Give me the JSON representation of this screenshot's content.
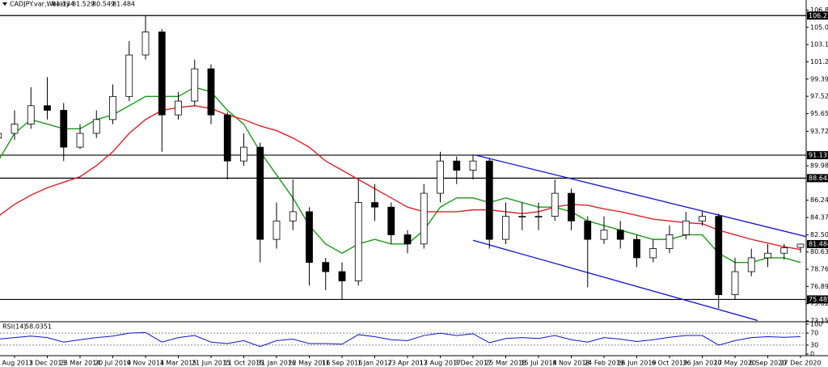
{
  "chart_data": {
    "type": "candlestick",
    "title": "CADJPY.var,Weekly",
    "categories": [
      null,
      "1 Aug 2013",
      null,
      "1 Dec 2013",
      null,
      "23 Mar 2014",
      null,
      "20 Jul 2014",
      null,
      "9 Nov 2014",
      null,
      "1 Mar 2015",
      null,
      "21 Jun 2015",
      null,
      "11 Oct 2015",
      null,
      "31 Jan 2016",
      null,
      "22 May 2016",
      null,
      "11 Sep 2016",
      null,
      "1 Jan 2017",
      null,
      "23 Apr 2017",
      null,
      "13 Aug 2017",
      null,
      "3 Dec 2017",
      null,
      "25 Mar 2018",
      null,
      "15 Jul 2018",
      null,
      "4 Nov 2018",
      null,
      "24 Feb 2019",
      null,
      "16 Jun 2019",
      null,
      "6 Oct 2019",
      null,
      "26 Jan 2020",
      null,
      "17 May 2020",
      null,
      "6 Sep 2020",
      null,
      "27 Dec 2020"
    ],
    "open": [
      93,
      93.5,
      94.5,
      96.5,
      96,
      92,
      93.5,
      95,
      97.5,
      102,
      104.5,
      95.5,
      97,
      100.5,
      95.5,
      90.5,
      92,
      82,
      84,
      85,
      79.5,
      78.5,
      77.5,
      86,
      85.5,
      82.5,
      81.5,
      87,
      90.5,
      89.5,
      90.5,
      82,
      84.5,
      84.5,
      84.5,
      87,
      84,
      82,
      83,
      82,
      80,
      81,
      82.5,
      84,
      84.5,
      76,
      78.5,
      80,
      80.5,
      81.134
    ],
    "high": [
      95,
      96,
      98.5,
      99.6,
      96.8,
      94.5,
      96,
      98.8,
      103.5,
      106.3,
      104.8,
      98,
      101.5,
      101,
      95.8,
      93.5,
      92.5,
      86,
      88.5,
      85.5,
      80,
      79.5,
      88.5,
      88,
      86,
      83,
      88,
      91.5,
      91,
      91.2,
      90.8,
      86,
      86,
      86,
      88.5,
      87.5,
      84.5,
      84.5,
      84,
      82.5,
      82,
      83.5,
      85,
      85,
      84.8,
      80,
      81,
      81.5,
      81.5,
      81.529
    ],
    "low": [
      92,
      92.8,
      94,
      95,
      90.5,
      91.8,
      93,
      94.5,
      97,
      101.5,
      91.5,
      95,
      96.5,
      94.5,
      88.5,
      90,
      79.5,
      81,
      83,
      77,
      76.5,
      75.5,
      77,
      84,
      81.5,
      80.5,
      81,
      86,
      88,
      88.5,
      81,
      81.5,
      83,
      83,
      84,
      83,
      76.8,
      81.5,
      81,
      79,
      79.5,
      80.5,
      82,
      83.5,
      74.5,
      75.5,
      78,
      79,
      79.8,
      80.549
    ],
    "close": [
      93.5,
      94.5,
      96.5,
      96,
      92,
      93.5,
      95,
      97.5,
      102,
      104.5,
      95.5,
      97,
      100.5,
      95.5,
      90.5,
      92,
      82,
      84,
      85,
      79.5,
      78.5,
      77.5,
      86,
      85.5,
      82.5,
      81.5,
      87,
      90.5,
      89.5,
      90.5,
      82,
      84.5,
      84.5,
      84.5,
      87,
      84,
      82,
      83,
      82,
      80,
      81,
      82.5,
      84,
      84.5,
      76,
      78.5,
      80,
      80.5,
      81.1,
      81.484
    ],
    "bull_color": "#ffffff",
    "bear_color": "#000000",
    "series": [
      {
        "color": "#1a9a1a",
        "values": [
          90.5,
          93.5,
          95,
          94.5,
          94,
          94,
          95,
          95.5,
          96.5,
          97.5,
          97.5,
          97.5,
          98.5,
          98,
          96,
          94.5,
          91.5,
          89,
          86.5,
          83.5,
          81.5,
          80.5,
          81.5,
          82,
          81.5,
          81.5,
          83,
          85.5,
          86.5,
          86.5,
          86,
          86.5,
          86,
          85.5,
          85.5,
          85,
          84,
          83.5,
          83,
          82.5,
          82,
          82,
          82.5,
          82.5,
          80.5,
          79.5,
          79.5,
          80,
          80,
          79.5
        ]
      },
      {
        "color": "#e0202a",
        "values": [
          84.5,
          85.8,
          86.8,
          87.6,
          88.2,
          88.8,
          90,
          91.5,
          93.5,
          95,
          96,
          96.3,
          96.5,
          96.2,
          95.5,
          95,
          94.3,
          93.8,
          93,
          92,
          90.5,
          89.5,
          88.5,
          87.5,
          86.5,
          85.5,
          85,
          85,
          85,
          85.2,
          85.2,
          85,
          84.8,
          85,
          85.5,
          85.8,
          85.7,
          85.3,
          85,
          84.6,
          84.2,
          84,
          83.8,
          83.7,
          83,
          82.5,
          82,
          81.6,
          81.2,
          80.9
        ]
      }
    ],
    "levels": [
      106.276,
      91.137,
      88.642,
      75.485
    ],
    "trendlines": [
      {
        "color": "#1010d0",
        "x": [
          29.15,
          49.35
        ],
        "y": [
          91.137,
          82.3
        ]
      },
      {
        "color": "#1010d0",
        "x": [
          29.0,
          46.38
        ],
        "y": [
          81.9,
          73.2
        ]
      }
    ],
    "ylim": [
      73.155,
      106.87
    ],
    "yticks": [
      {
        "value": 106.87,
        "label": "106.870"
      },
      {
        "value": 105,
        "label": "105.000"
      },
      {
        "value": 103.13,
        "label": "103.130"
      },
      {
        "value": 101.26,
        "label": "101.260"
      },
      {
        "value": 99.39,
        "label": "99.390"
      },
      {
        "value": 97.52,
        "label": "97.520"
      },
      {
        "value": 95.65,
        "label": "95.650"
      },
      {
        "value": 93.725,
        "label": "93.725"
      },
      {
        "value": 89.985,
        "label": "89.985"
      },
      {
        "value": 86.245,
        "label": "86.245"
      },
      {
        "value": 84.375,
        "label": "84.375"
      },
      {
        "value": 82.505,
        "label": "82.505"
      },
      {
        "value": 80.635,
        "label": "80.635"
      },
      {
        "value": 78.765,
        "label": "78.765"
      },
      {
        "value": 76.895,
        "label": "76.895"
      },
      {
        "value": 75.025,
        "label": "75.025"
      },
      {
        "value": 73.155,
        "label": "73.155"
      }
    ],
    "rsi": {
      "title": "RSI(14)",
      "color": "#1010d0",
      "values": [
        50,
        55,
        60,
        55,
        40,
        48,
        55,
        60,
        70,
        72,
        40,
        55,
        62,
        40,
        35,
        45,
        25,
        45,
        50,
        35,
        35,
        33,
        65,
        58,
        48,
        45,
        62,
        70,
        62,
        68,
        38,
        52,
        55,
        52,
        62,
        48,
        40,
        55,
        50,
        42,
        48,
        56,
        62,
        62,
        30,
        45,
        55,
        58,
        56,
        58.0351
      ],
      "ylim": [
        0,
        100
      ],
      "yticks": [
        0,
        30,
        70,
        100
      ],
      "dashed": [
        30,
        70
      ]
    }
  }
}
